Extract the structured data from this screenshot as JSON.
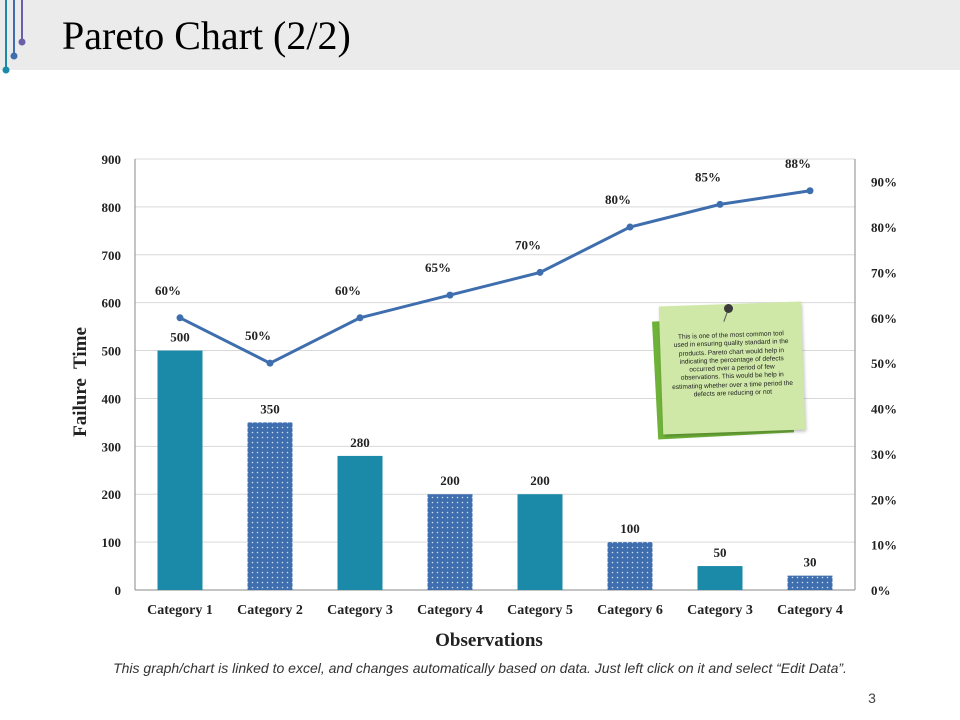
{
  "slide": {
    "title": "Pareto Chart (2/2)",
    "footer_note": "This graph/chart is linked to excel, and changes automatically based on data. Just left click on it and select “Edit Data”.",
    "page_number": "3",
    "note_text": "This is one of the most common tool used in ensuring quality standard in the products. Pareto chart would help in indicating the percentage of defects occurred over a period of few observations. This would be help in estimating whether over a time period the defects are reducing or not"
  },
  "colors": {
    "bar_solid": "#1a8aa8",
    "bar_dotted": "#3f6eae",
    "line": "#3f6eae",
    "note_green": "#6fb23a",
    "note_light": "#cfe8a8",
    "title_bar": "#ebebeb",
    "accent_teal": "#1a8aa8",
    "accent_purple": "#6a5fa8"
  },
  "chart_data": {
    "type": "bar",
    "categories": [
      "Category 1",
      "Category 2",
      "Category 3",
      "Category 4",
      "Category 5",
      "Category 6",
      "Category 3",
      "Category 4"
    ],
    "series": [
      {
        "values": [
          500,
          350,
          280,
          200,
          200,
          100,
          50,
          30
        ],
        "data_labels": [
          "500",
          "350",
          "280",
          "200",
          "200",
          "100",
          "50",
          "30"
        ],
        "fill_pattern": [
          "solid",
          "dotted",
          "solid",
          "dotted",
          "solid",
          "dotted",
          "solid",
          "dotted"
        ],
        "axis": "left"
      },
      {
        "type": "line",
        "values": [
          60,
          50,
          60,
          65,
          70,
          80,
          85,
          88
        ],
        "data_labels": [
          "60%",
          "50%",
          "60%",
          "65%",
          "70%",
          "80%",
          "85%",
          "88%"
        ],
        "axis": "right"
      }
    ],
    "xlabel": "Observations",
    "ylabel": "Failure  Time",
    "ylim": [
      0,
      900
    ],
    "yticks": [
      "0",
      "100",
      "200",
      "300",
      "400",
      "500",
      "600",
      "700",
      "800",
      "900"
    ],
    "y2lim": [
      0,
      95
    ],
    "y2ticks": [
      "0%",
      "10%",
      "20%",
      "30%",
      "40%",
      "50%",
      "60%",
      "70%",
      "80%",
      "90%"
    ],
    "grid": true,
    "legend": "none"
  }
}
